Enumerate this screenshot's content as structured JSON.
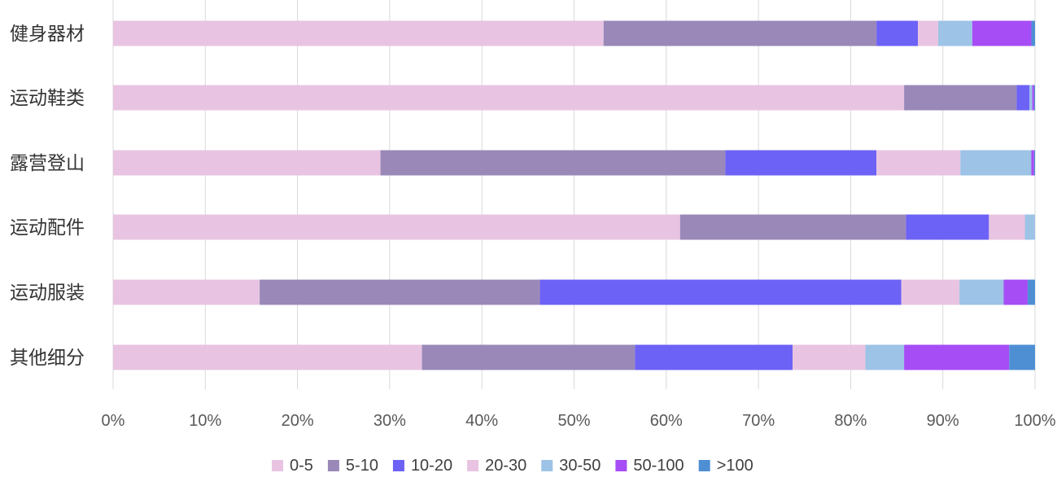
{
  "chart_data": {
    "type": "bar",
    "orientation": "horizontal",
    "stacked": "percent",
    "categories": [
      "健身器材",
      "运动鞋类",
      "露营登山",
      "运动配件",
      "运动服装",
      "其他细分"
    ],
    "x_ticks": [
      "0%",
      "10%",
      "20%",
      "30%",
      "40%",
      "50%",
      "60%",
      "70%",
      "80%",
      "90%",
      "100%"
    ],
    "xlim": [
      0,
      100
    ],
    "grid": true,
    "legend_position": "bottom",
    "series": [
      {
        "name": "0-5",
        "color": "#e8c4e2",
        "values": [
          53.2,
          85.8,
          29.0,
          61.5,
          15.9,
          33.5
        ]
      },
      {
        "name": "5-10",
        "color": "#9a88b8",
        "values": [
          29.6,
          12.2,
          37.4,
          24.5,
          30.4,
          23.1
        ]
      },
      {
        "name": "10-20",
        "color": "#6c62f5",
        "values": [
          4.5,
          1.4,
          16.4,
          9.0,
          39.2,
          17.1
        ]
      },
      {
        "name": "20-30",
        "color": "#e8c4e2",
        "values": [
          2.2,
          0.0,
          9.1,
          3.9,
          6.3,
          7.9
        ]
      },
      {
        "name": "30-50",
        "color": "#9dc3e6",
        "values": [
          3.7,
          0.3,
          7.7,
          1.1,
          4.8,
          4.2
        ]
      },
      {
        "name": "50-100",
        "color": "#a64df5",
        "values": [
          6.4,
          0.2,
          0.3,
          0.0,
          2.6,
          11.4
        ]
      },
      {
        "name": ">100",
        "color": "#4e8fd4",
        "values": [
          0.4,
          0.1,
          0.1,
          0.0,
          0.8,
          2.8
        ]
      }
    ]
  }
}
